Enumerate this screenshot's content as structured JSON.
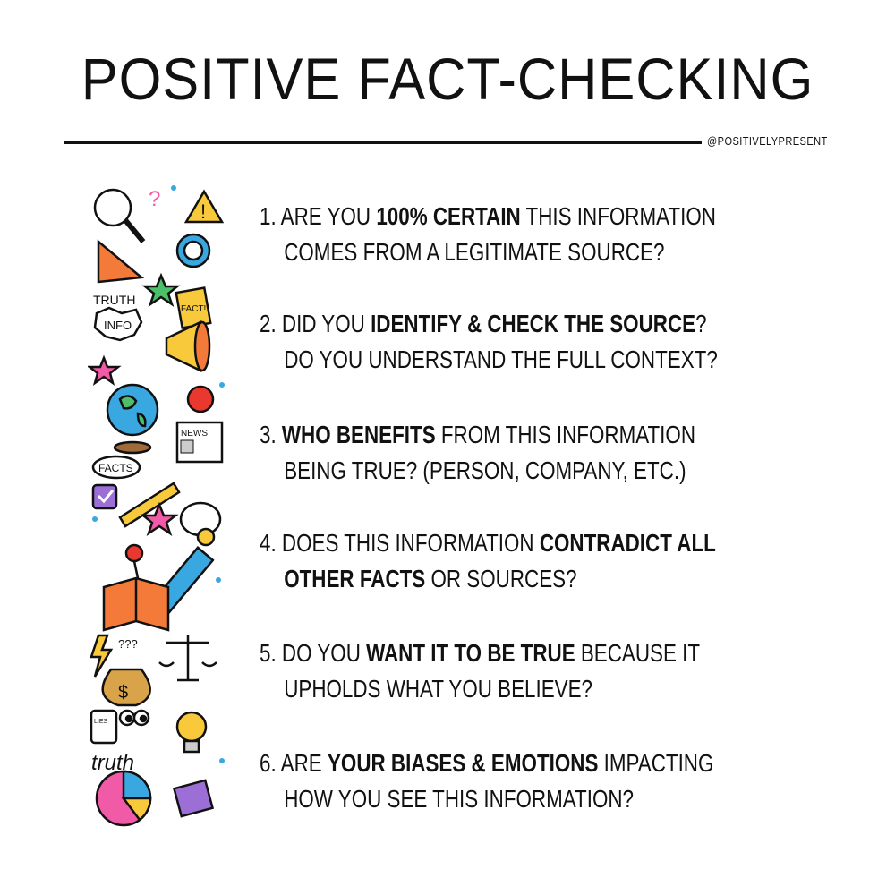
{
  "title": "POSITIVE FACT-CHECKING",
  "credit": "@POSITIVELYPRESENT",
  "items": [
    {
      "num": "1.",
      "a": "ARE YOU ",
      "b": "100% CERTAIN",
      "c": " THIS INFORMATION",
      "line2": "COMES FROM A LEGITIMATE SOURCE?"
    },
    {
      "num": "2.",
      "a": "DID YOU ",
      "b": "IDENTIFY & CHECK THE SOURCE",
      "c": "?",
      "line2": "DO YOU UNDERSTAND THE FULL CONTEXT?"
    },
    {
      "num": "3.",
      "a": "",
      "b": "WHO BENEFITS",
      "c": " FROM THIS INFORMATION",
      "line2": "BEING TRUE? (PERSON, COMPANY, ETC.)"
    },
    {
      "num": "4.",
      "a": "DOES THIS INFORMATION ",
      "b": "CONTRADICT ALL",
      "c": "",
      "line2b": "OTHER FACTS",
      "line2": " OR SOURCES?"
    },
    {
      "num": "5.",
      "a": "DO YOU ",
      "b": "WANT IT TO BE TRUE",
      "c": " BECAUSE IT",
      "line2": "UPHOLDS WHAT YOU BELIEVE?"
    },
    {
      "num": "6.",
      "a": "ARE ",
      "b": "YOUR BIASES & EMOTIONS",
      "c": " IMPACTING",
      "line2": "HOW YOU SEE THIS INFORMATION?"
    }
  ],
  "doodles": {
    "truth": "TRUTH",
    "info": "INFO",
    "fact": "FACT!",
    "news": "NEWS",
    "facts": "FACTS",
    "qqq": "???",
    "lies": "LIES",
    "truth2": "truth",
    "dollar": "$"
  },
  "colors": {
    "orange": "#f47a3a",
    "yellow": "#f9c93c",
    "blue": "#3aa8e0",
    "green": "#4cbf6a",
    "pink": "#f05aa6",
    "purple": "#9b6fd6"
  }
}
